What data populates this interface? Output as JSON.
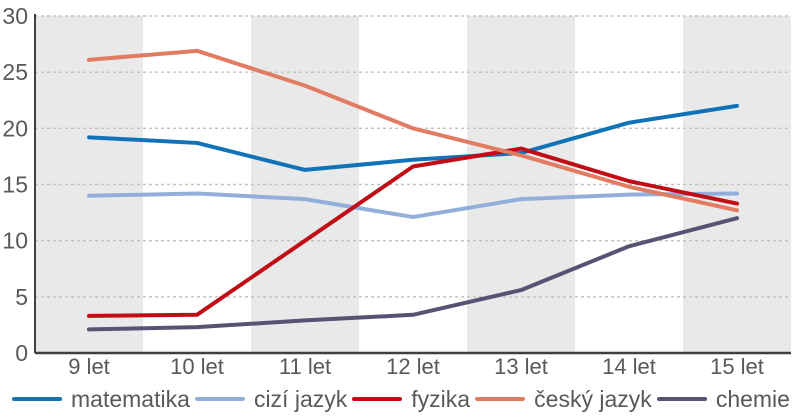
{
  "chart_data": {
    "type": "line",
    "title": "",
    "xlabel": "",
    "ylabel": "",
    "categories": [
      "9 let",
      "10 let",
      "11 let",
      "12 let",
      "13 let",
      "14 let",
      "15 let"
    ],
    "series": [
      {
        "name": "matematika",
        "color": "#1173b7",
        "values": [
          19.2,
          18.7,
          16.3,
          17.2,
          17.8,
          20.5,
          22.0
        ]
      },
      {
        "name": "cizí jazyk",
        "color": "#92afdc",
        "values": [
          14.0,
          14.2,
          13.7,
          12.1,
          13.7,
          14.1,
          14.2
        ]
      },
      {
        "name": "fyzika",
        "color": "#c00d16",
        "values": [
          3.3,
          3.4,
          10.0,
          16.6,
          18.2,
          15.3,
          13.3
        ]
      },
      {
        "name": "český jazyk",
        "color": "#e17b62",
        "values": [
          26.1,
          26.9,
          23.8,
          20.0,
          17.6,
          14.8,
          12.7
        ]
      },
      {
        "name": "chemie",
        "color": "#595273",
        "values": [
          2.1,
          2.3,
          2.9,
          3.4,
          5.6,
          9.5,
          12.0
        ]
      }
    ],
    "ylim": [
      0,
      30
    ],
    "yticks": [
      0,
      5,
      10,
      15,
      20,
      25,
      30
    ],
    "grid": "horizontal dashed",
    "legend_position": "bottom",
    "plot_bands": "alternating vertical gray stripes starting at first category",
    "band_color": "#e9e9e9",
    "gridline_color": "#c2c2c2",
    "axis_color": "#3f3f3f",
    "label_color": "#595959"
  }
}
